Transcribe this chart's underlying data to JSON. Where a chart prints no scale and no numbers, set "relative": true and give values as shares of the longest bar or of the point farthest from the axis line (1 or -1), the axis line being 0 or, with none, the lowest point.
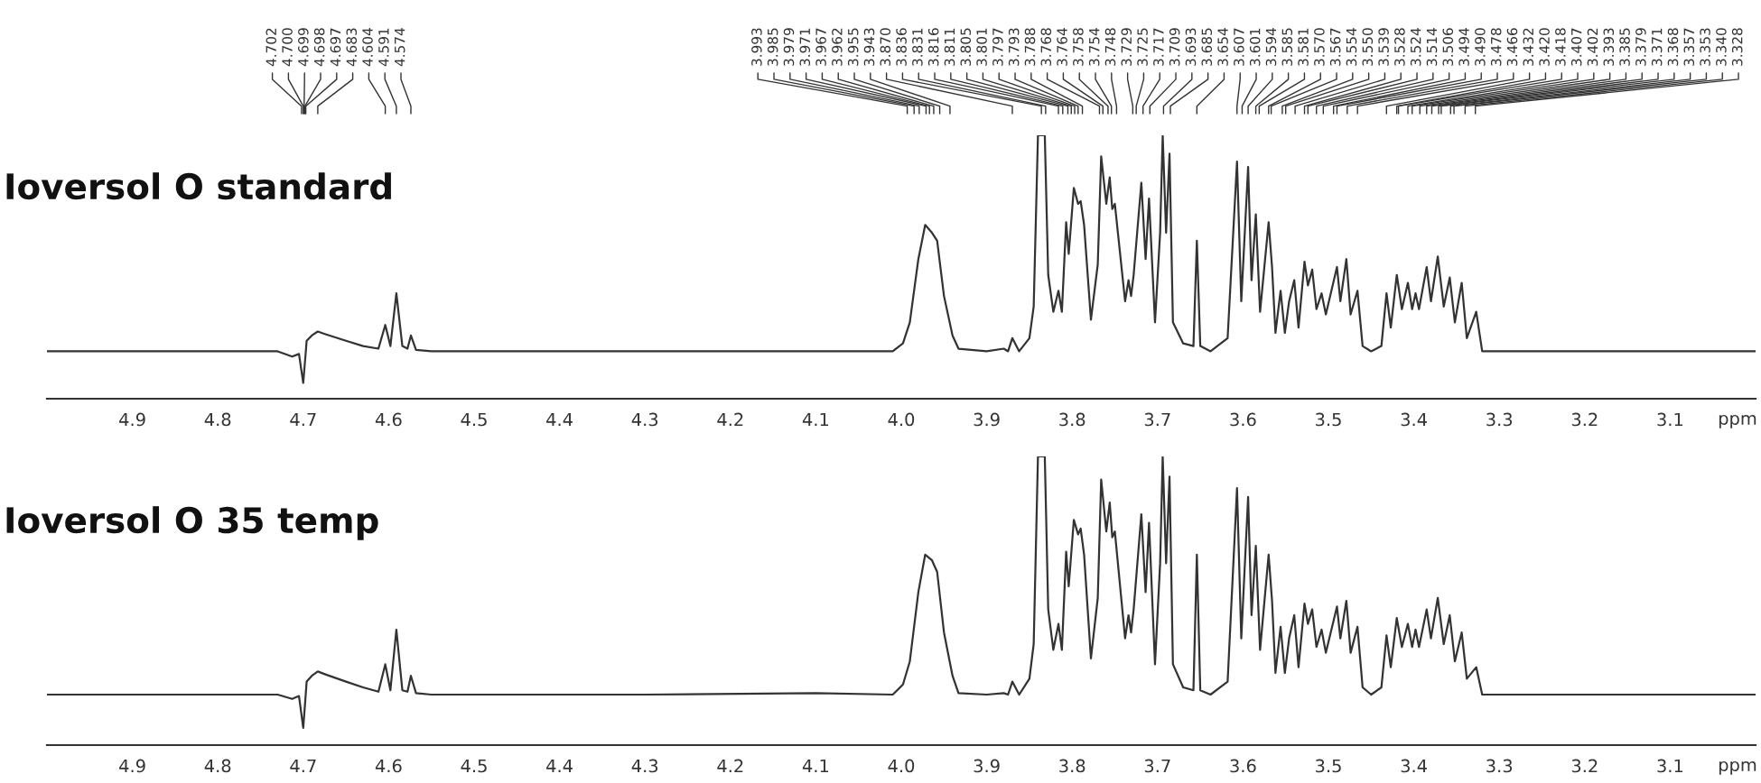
{
  "chart_data": [
    {
      "type": "line",
      "title": "Ioversol O standard",
      "xlabel": "ppm",
      "relative": true,
      "xlim": [
        5.0,
        3.0
      ],
      "xticks": [
        4.9,
        4.8,
        4.7,
        4.6,
        4.5,
        4.4,
        4.3,
        4.2,
        4.1,
        {
          "value": 4,
          "label": "4.0"
        },
        3.9,
        3.8,
        3.7,
        3.6,
        3.5,
        3.4,
        3.3,
        3.2,
        3.1
      ],
      "x": [
        5.0,
        4.8,
        4.73,
        4.713,
        4.705,
        4.7,
        4.696,
        4.69,
        4.683,
        4.674,
        4.65,
        4.63,
        4.612,
        4.604,
        4.598,
        4.591,
        4.584,
        4.578,
        4.574,
        4.568,
        4.55,
        4.3,
        4.1,
        4.01,
        3.998,
        3.99,
        3.98,
        3.972,
        3.964,
        3.958,
        3.95,
        3.94,
        3.933,
        3.9,
        3.88,
        3.875,
        3.87,
        3.862,
        3.85,
        3.845,
        3.84,
        3.832,
        3.828,
        3.822,
        3.816,
        3.812,
        3.807,
        3.804,
        3.798,
        3.793,
        3.79,
        3.786,
        3.778,
        3.77,
        3.766,
        3.76,
        3.756,
        3.753,
        3.75,
        3.738,
        3.734,
        3.731,
        3.728,
        3.719,
        3.714,
        3.71,
        3.703,
        3.697,
        3.694,
        3.69,
        3.686,
        3.682,
        3.67,
        3.658,
        3.654,
        3.65,
        3.638,
        3.618,
        3.607,
        3.602,
        3.594,
        3.59,
        3.585,
        3.58,
        3.57,
        3.566,
        3.562,
        3.556,
        3.551,
        3.546,
        3.54,
        3.535,
        3.528,
        3.524,
        3.519,
        3.514,
        3.508,
        3.503,
        3.49,
        3.486,
        3.479,
        3.474,
        3.466,
        3.46,
        3.45,
        3.438,
        3.432,
        3.427,
        3.42,
        3.414,
        3.407,
        3.402,
        3.398,
        3.394,
        3.385,
        3.38,
        3.372,
        3.365,
        3.358,
        3.352,
        3.344,
        3.338,
        3.327,
        3.32,
        3.2,
        3.0
      ],
      "series": [
        {
          "color": "#333333",
          "values": [
            0.18,
            0.18,
            0.18,
            0.16,
            0.17,
            0.06,
            0.22,
            0.24,
            0.255,
            0.245,
            0.22,
            0.2,
            0.19,
            0.28,
            0.2,
            0.4,
            0.2,
            0.19,
            0.24,
            0.185,
            0.18,
            0.18,
            0.18,
            0.18,
            0.21,
            0.29,
            0.53,
            0.66,
            0.63,
            0.6,
            0.39,
            0.24,
            0.19,
            0.18,
            0.19,
            0.18,
            0.23,
            0.18,
            0.23,
            0.35,
            1.0,
            1.0,
            0.47,
            0.33,
            0.41,
            0.33,
            0.67,
            0.55,
            0.8,
            0.74,
            0.75,
            0.66,
            0.3,
            0.51,
            0.92,
            0.74,
            0.84,
            0.72,
            0.74,
            0.37,
            0.45,
            0.39,
            0.47,
            0.82,
            0.53,
            0.76,
            0.29,
            0.63,
            1.0,
            0.63,
            0.93,
            0.29,
            0.21,
            0.2,
            0.6,
            0.2,
            0.18,
            0.23,
            0.9,
            0.37,
            0.88,
            0.45,
            0.7,
            0.33,
            0.67,
            0.5,
            0.25,
            0.41,
            0.25,
            0.37,
            0.45,
            0.27,
            0.52,
            0.43,
            0.49,
            0.34,
            0.4,
            0.32,
            0.5,
            0.37,
            0.53,
            0.32,
            0.41,
            0.2,
            0.18,
            0.2,
            0.4,
            0.27,
            0.47,
            0.34,
            0.44,
            0.34,
            0.4,
            0.34,
            0.5,
            0.37,
            0.54,
            0.35,
            0.46,
            0.29,
            0.44,
            0.23,
            0.33,
            0.18,
            0.18,
            0.18
          ]
        }
      ],
      "annotations": [
        {
          "text": "4.702",
          "x": 4.702
        },
        {
          "text": "4.700",
          "x": 4.7
        },
        {
          "text": "4.699",
          "x": 4.699
        },
        {
          "text": "4.698",
          "x": 4.698
        },
        {
          "text": "4.697",
          "x": 4.697
        },
        {
          "text": "4.683",
          "x": 4.683
        },
        {
          "text": "4.604",
          "x": 4.604
        },
        {
          "text": "4.591",
          "x": 4.591
        },
        {
          "text": "4.574",
          "x": 4.574
        },
        {
          "text": "3.993",
          "x": 3.993
        },
        {
          "text": "3.985",
          "x": 3.985
        },
        {
          "text": "3.979",
          "x": 3.979
        },
        {
          "text": "3.971",
          "x": 3.971
        },
        {
          "text": "3.967",
          "x": 3.967
        },
        {
          "text": "3.962",
          "x": 3.962
        },
        {
          "text": "3.955",
          "x": 3.955
        },
        {
          "text": "3.943",
          "x": 3.943
        },
        {
          "text": "3.870",
          "x": 3.87
        },
        {
          "text": "3.836",
          "x": 3.836
        },
        {
          "text": "3.831",
          "x": 3.831
        },
        {
          "text": "3.816",
          "x": 3.816
        },
        {
          "text": "3.811",
          "x": 3.811
        },
        {
          "text": "3.805",
          "x": 3.805
        },
        {
          "text": "3.801",
          "x": 3.801
        },
        {
          "text": "3.797",
          "x": 3.797
        },
        {
          "text": "3.793",
          "x": 3.793
        },
        {
          "text": "3.788",
          "x": 3.788
        },
        {
          "text": "3.768",
          "x": 3.768
        },
        {
          "text": "3.764",
          "x": 3.764
        },
        {
          "text": "3.758",
          "x": 3.758
        },
        {
          "text": "3.754",
          "x": 3.754
        },
        {
          "text": "3.748",
          "x": 3.748
        },
        {
          "text": "3.729",
          "x": 3.729
        },
        {
          "text": "3.725",
          "x": 3.725
        },
        {
          "text": "3.717",
          "x": 3.717
        },
        {
          "text": "3.709",
          "x": 3.709
        },
        {
          "text": "3.693",
          "x": 3.693
        },
        {
          "text": "3.685",
          "x": 3.685
        },
        {
          "text": "3.654",
          "x": 3.654
        },
        {
          "text": "3.607",
          "x": 3.607
        },
        {
          "text": "3.601",
          "x": 3.601
        },
        {
          "text": "3.594",
          "x": 3.594
        },
        {
          "text": "3.585",
          "x": 3.585
        },
        {
          "text": "3.581",
          "x": 3.581
        },
        {
          "text": "3.570",
          "x": 3.57
        },
        {
          "text": "3.567",
          "x": 3.567
        },
        {
          "text": "3.554",
          "x": 3.554
        },
        {
          "text": "3.550",
          "x": 3.55
        },
        {
          "text": "3.539",
          "x": 3.539
        },
        {
          "text": "3.528",
          "x": 3.528
        },
        {
          "text": "3.524",
          "x": 3.524
        },
        {
          "text": "3.514",
          "x": 3.514
        },
        {
          "text": "3.506",
          "x": 3.506
        },
        {
          "text": "3.494",
          "x": 3.494
        },
        {
          "text": "3.490",
          "x": 3.49
        },
        {
          "text": "3.478",
          "x": 3.478
        },
        {
          "text": "3.466",
          "x": 3.466
        },
        {
          "text": "3.432",
          "x": 3.432
        },
        {
          "text": "3.420",
          "x": 3.42
        },
        {
          "text": "3.418",
          "x": 3.418
        },
        {
          "text": "3.407",
          "x": 3.407
        },
        {
          "text": "3.402",
          "x": 3.402
        },
        {
          "text": "3.393",
          "x": 3.393
        },
        {
          "text": "3.385",
          "x": 3.385
        },
        {
          "text": "3.379",
          "x": 3.379
        },
        {
          "text": "3.371",
          "x": 3.371
        },
        {
          "text": "3.368",
          "x": 3.368
        },
        {
          "text": "3.357",
          "x": 3.357
        },
        {
          "text": "3.353",
          "x": 3.353
        },
        {
          "text": "3.340",
          "x": 3.34
        },
        {
          "text": "3.328",
          "x": 3.328
        }
      ]
    },
    {
      "type": "line",
      "title": "Ioversol O 35 temp",
      "xlabel": "ppm",
      "relative": true,
      "xlim": [
        5.0,
        3.0
      ],
      "xticks": [
        4.9,
        4.8,
        4.7,
        4.6,
        4.5,
        4.4,
        4.3,
        4.2,
        4.1,
        {
          "value": 4,
          "label": "4.0"
        },
        3.9,
        3.8,
        3.7,
        3.6,
        3.5,
        3.4,
        3.3,
        3.2,
        3.1
      ],
      "x": [
        5.0,
        4.8,
        4.73,
        4.713,
        4.705,
        4.7,
        4.696,
        4.69,
        4.683,
        4.674,
        4.65,
        4.63,
        4.612,
        4.604,
        4.598,
        4.591,
        4.584,
        4.578,
        4.574,
        4.568,
        4.55,
        4.3,
        4.1,
        4.01,
        3.998,
        3.99,
        3.98,
        3.972,
        3.964,
        3.958,
        3.95,
        3.94,
        3.933,
        3.9,
        3.88,
        3.875,
        3.87,
        3.862,
        3.85,
        3.845,
        3.84,
        3.832,
        3.828,
        3.822,
        3.816,
        3.812,
        3.807,
        3.804,
        3.798,
        3.793,
        3.79,
        3.786,
        3.778,
        3.77,
        3.766,
        3.76,
        3.756,
        3.753,
        3.75,
        3.738,
        3.734,
        3.731,
        3.728,
        3.719,
        3.714,
        3.71,
        3.703,
        3.697,
        3.694,
        3.69,
        3.686,
        3.682,
        3.67,
        3.658,
        3.654,
        3.65,
        3.638,
        3.618,
        3.607,
        3.602,
        3.594,
        3.59,
        3.585,
        3.58,
        3.57,
        3.566,
        3.562,
        3.556,
        3.551,
        3.546,
        3.54,
        3.535,
        3.528,
        3.524,
        3.519,
        3.514,
        3.508,
        3.503,
        3.49,
        3.486,
        3.479,
        3.474,
        3.466,
        3.46,
        3.45,
        3.438,
        3.432,
        3.427,
        3.42,
        3.414,
        3.407,
        3.402,
        3.398,
        3.394,
        3.385,
        3.38,
        3.372,
        3.365,
        3.358,
        3.352,
        3.344,
        3.338,
        3.327,
        3.32,
        3.2,
        3.0
      ],
      "series": [
        {
          "color": "#333333",
          "values": [
            0.175,
            0.175,
            0.175,
            0.16,
            0.17,
            0.06,
            0.22,
            0.24,
            0.255,
            0.245,
            0.22,
            0.2,
            0.185,
            0.28,
            0.19,
            0.4,
            0.19,
            0.185,
            0.24,
            0.18,
            0.175,
            0.175,
            0.18,
            0.175,
            0.21,
            0.29,
            0.53,
            0.66,
            0.64,
            0.6,
            0.39,
            0.24,
            0.18,
            0.175,
            0.18,
            0.175,
            0.22,
            0.175,
            0.23,
            0.35,
            1.0,
            1.0,
            0.47,
            0.33,
            0.42,
            0.33,
            0.67,
            0.55,
            0.78,
            0.73,
            0.75,
            0.66,
            0.3,
            0.51,
            0.92,
            0.74,
            0.84,
            0.72,
            0.74,
            0.37,
            0.45,
            0.39,
            0.47,
            0.8,
            0.53,
            0.77,
            0.28,
            0.63,
            1.0,
            0.63,
            0.93,
            0.28,
            0.2,
            0.19,
            0.66,
            0.19,
            0.175,
            0.22,
            0.89,
            0.37,
            0.86,
            0.45,
            0.69,
            0.33,
            0.66,
            0.5,
            0.25,
            0.41,
            0.25,
            0.37,
            0.45,
            0.27,
            0.49,
            0.42,
            0.47,
            0.34,
            0.4,
            0.32,
            0.48,
            0.37,
            0.5,
            0.32,
            0.41,
            0.2,
            0.175,
            0.2,
            0.38,
            0.27,
            0.44,
            0.34,
            0.42,
            0.34,
            0.4,
            0.34,
            0.47,
            0.37,
            0.51,
            0.35,
            0.45,
            0.29,
            0.39,
            0.23,
            0.27,
            0.175,
            0.175,
            0.175
          ]
        }
      ]
    }
  ]
}
